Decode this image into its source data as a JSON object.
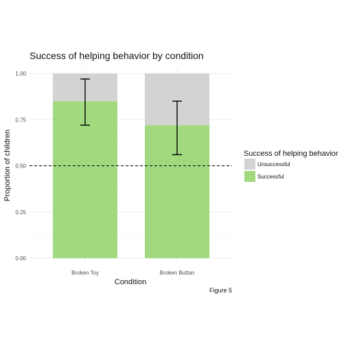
{
  "chart_data": {
    "type": "bar",
    "stacked": true,
    "title": "Success of helping behavior by condition",
    "xlabel": "Condition",
    "ylabel": "Proportion of children",
    "caption": "Figure 5",
    "categories": [
      "Broken Toy",
      "Broken Button"
    ],
    "series": [
      {
        "name": "Unsuccessful",
        "values": [
          0.15,
          0.28
        ],
        "color": "#d3d3d3"
      },
      {
        "name": "Successful",
        "values": [
          0.85,
          0.72
        ],
        "color": "#a1d97f"
      }
    ],
    "error_bars": [
      {
        "category": "Broken Toy",
        "low": 0.72,
        "high": 0.97
      },
      {
        "category": "Broken Button",
        "low": 0.56,
        "high": 0.85
      }
    ],
    "reference_line": {
      "y": 0.5,
      "style": "dashed"
    },
    "ylim": [
      0,
      1
    ],
    "yticks": [
      "0.00",
      "0.25",
      "0.50",
      "0.75",
      "1.00"
    ],
    "legend": {
      "title": "Success of helping behavior",
      "placement": "right",
      "entries": [
        "Unsuccessful",
        "Successful"
      ]
    },
    "grid": true
  }
}
